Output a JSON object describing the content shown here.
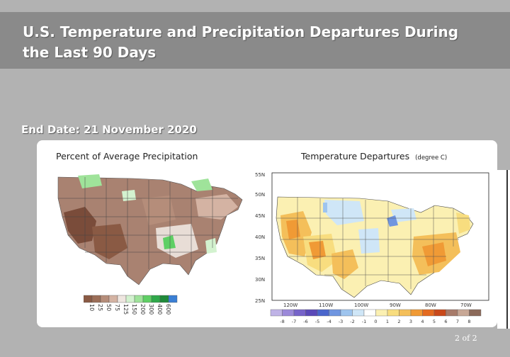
{
  "slide": {
    "title": "U.S. Temperature and Precipitation Departures During the Last 90 Days",
    "end_date": "End Date:  21 November 2020",
    "page_number": "2 of 2"
  },
  "precip_map": {
    "title": "Percent of Average Precipitation",
    "legend_labels": [
      "10",
      "25",
      "50",
      "75",
      "125",
      "150",
      "200",
      "300",
      "400",
      "600"
    ],
    "legend_colors": [
      "#8a5a44",
      "#9c6e58",
      "#b58d7a",
      "#d4b3a3",
      "#efe6e0",
      "#d3f2cf",
      "#9fe39a",
      "#5fcf64",
      "#2fa84a",
      "#1f8a3a",
      "#3a7fd4"
    ]
  },
  "temp_map": {
    "title": "Temperature Departures",
    "unit": "(degree C)",
    "lat_labels": [
      "55N",
      "50N",
      "45N",
      "40N",
      "35N",
      "30N",
      "25N"
    ],
    "lon_labels": [
      "120W",
      "110W",
      "100W",
      "90W",
      "80W",
      "70W"
    ],
    "legend_labels": [
      "-8",
      "-7",
      "-6",
      "-5",
      "-4",
      "-3",
      "-2",
      "-1",
      "0",
      "1",
      "2",
      "3",
      "4",
      "5",
      "6",
      "7",
      "8"
    ],
    "legend_colors": [
      "#bfb3e6",
      "#9b89d9",
      "#7663c9",
      "#5a49b8",
      "#4a66cc",
      "#6f95e0",
      "#9ec4ee",
      "#cfe6f7",
      "#ffffff",
      "#fbf0b2",
      "#f8dd7f",
      "#f4bf5a",
      "#f09a35",
      "#e46a1f",
      "#c9481a",
      "#a87b6a",
      "#c8a896",
      "#8c6a5a"
    ]
  }
}
